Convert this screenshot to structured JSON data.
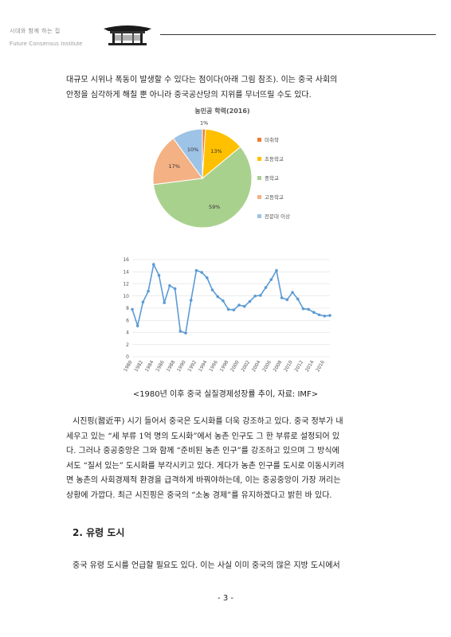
{
  "header": {
    "org_korean": "시대와 함께 하는 집",
    "org_english": "Future Consensus Institute"
  },
  "body": {
    "para1": [
      "대규모 시위나 폭동이 발생할 수 있다는 점이다(아래 그림 참조). 이는 중국 사회의",
      "안정을 심각하게 해칠 뿐 아니라 중국공산당의 지위를 무너뜨릴 수도 있다."
    ],
    "para2": [
      "시진핑(習近平) 시기 들어서 중국은 도시화를 더욱 강조하고 있다. 중국 정부가 내",
      "세우고 있는 “세 부류 1억 명의 도시화”에서 농촌 인구도 그 한 부류로 설정되어 있",
      "다. 그러나 중공중앙은 그와 함께 “준비된 농촌 인구”를 강조하고 있으며 그 방식에",
      "서도 “질서 있는” 도시화를 부각시키고 있다. 게다가 농촌 인구를 도시로 이동시키려",
      "면 농촌의 사회경제적 환경을 급격하게 바꿔야하는데, 이는 중공중앙이 가장 꺼리는",
      "상황에 가깝다. 최근 시진핑은 중국의 “소농 경제”를 유지하겠다고 밝힌 바 있다."
    ],
    "section_title": "2. 유령 도시",
    "para3": "중국 유령 도시를 언급할 필요도 있다. 이는 사실 이미 중국의 많은 지방 도시에서",
    "caption": "<1980년 이후 중국 실질경제성장률 추이, 자료: IMF>",
    "page_number": "- 3 -"
  },
  "chart_data": [
    {
      "type": "pie",
      "title": "농민공 학력(2016)",
      "labels": [
        "미취학",
        "초등학교",
        "중학교",
        "고등학교",
        "전문대 이상"
      ],
      "values": [
        1,
        13,
        59,
        17,
        10
      ],
      "value_labels": [
        "1%",
        "13%",
        "59%",
        "17%",
        "10%"
      ],
      "colors": [
        "#ED7D31",
        "#FFC000",
        "#A9D18E",
        "#F4B183",
        "#9DC3E6"
      ],
      "legend_position": "right"
    },
    {
      "type": "line",
      "title": "",
      "x": [
        1980,
        1981,
        1982,
        1983,
        1984,
        1985,
        1986,
        1987,
        1988,
        1989,
        1990,
        1991,
        1992,
        1993,
        1994,
        1995,
        1996,
        1997,
        1998,
        1999,
        2000,
        2001,
        2002,
        2003,
        2004,
        2005,
        2006,
        2007,
        2008,
        2009,
        2010,
        2011,
        2012,
        2013,
        2014,
        2015,
        2016,
        2017
      ],
      "y": [
        7.8,
        5.1,
        9.0,
        10.8,
        15.2,
        13.4,
        8.9,
        11.7,
        11.2,
        4.2,
        3.9,
        9.3,
        14.2,
        13.9,
        13.0,
        11.0,
        9.9,
        9.2,
        7.8,
        7.7,
        8.5,
        8.3,
        9.1,
        10.0,
        10.1,
        11.4,
        12.7,
        14.2,
        9.7,
        9.4,
        10.6,
        9.5,
        7.9,
        7.8,
        7.3,
        6.9,
        6.7,
        6.8
      ],
      "x_ticks": [
        "1980",
        "1982",
        "1984",
        "1986",
        "1988",
        "1990",
        "1992",
        "1994",
        "1996",
        "1998",
        "2000",
        "2002",
        "2004",
        "2006",
        "2008",
        "2010",
        "2012",
        "2014",
        "2016"
      ],
      "y_ticks": [
        0,
        2,
        4,
        6,
        8,
        10,
        12,
        14,
        16
      ],
      "ylim": [
        0,
        16
      ],
      "color": "#5B9BD5",
      "grid": true
    }
  ]
}
